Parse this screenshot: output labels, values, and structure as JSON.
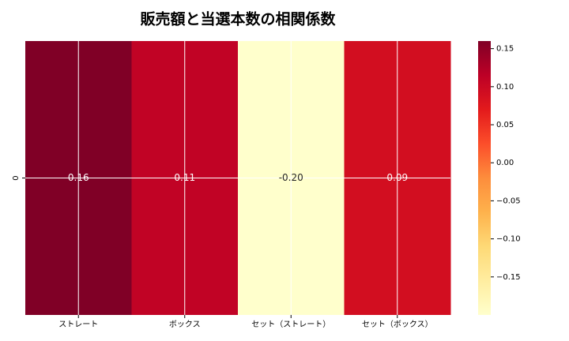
{
  "chart_data": {
    "type": "heatmap",
    "title": "販売額と当選本数の相関係数",
    "categories": [
      "ストレート",
      "ボックス",
      "セット（ストレート）",
      "セット（ボックス）"
    ],
    "rows": [
      "0"
    ],
    "values": [
      [
        0.16,
        0.11,
        -0.2,
        0.09
      ]
    ],
    "value_labels": [
      [
        "0.16",
        "0.11",
        "-0.20",
        "0.09"
      ]
    ],
    "colormap": [
      "#ffffcc",
      "#ffeda0",
      "#fed976",
      "#feb24c",
      "#fd8d3c",
      "#fc4e2a",
      "#e31a1c",
      "#bd0026",
      "#800026"
    ],
    "clim": [
      -0.2,
      0.16
    ],
    "cticks": [
      {
        "value": 0.15,
        "label": "0.15"
      },
      {
        "value": 0.1,
        "label": "0.10"
      },
      {
        "value": 0.05,
        "label": "0.05"
      },
      {
        "value": 0,
        "label": "0.00"
      },
      {
        "value": -0.05,
        "label": "−0.05"
      },
      {
        "value": -0.1,
        "label": "−0.10"
      },
      {
        "value": -0.15,
        "label": "−0.15"
      }
    ],
    "grid": true
  }
}
